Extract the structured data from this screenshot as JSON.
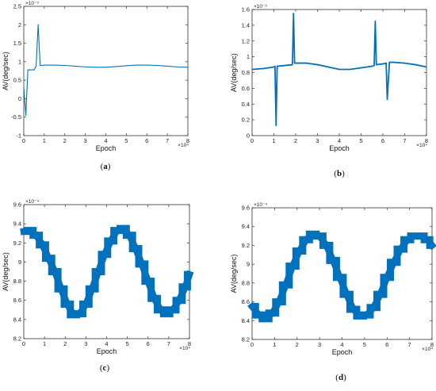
{
  "chart_data": [
    {
      "type": "line",
      "panel": "(a)",
      "caption_letter": "a",
      "xlabel": "Epoch",
      "ylabel": "AV(deg/sec)",
      "x_multiplier_label": "×10⁴",
      "y_multiplier_label": "×10⁻³",
      "xlim": [
        0,
        8
      ],
      "ylim": [
        -1,
        2.5
      ],
      "xticks": [
        "0",
        "1",
        "2",
        "3",
        "4",
        "5",
        "6",
        "7",
        "8"
      ],
      "yticks": [
        "-1",
        "-0.5",
        "0",
        "0.5",
        "1",
        "1.5",
        "2",
        "2.5"
      ],
      "series_color": "#0072BD",
      "series": [
        {
          "x": [
            0.0,
            0.1,
            0.2,
            0.3,
            0.5,
            0.6,
            0.7,
            0.8,
            0.9,
            1.0,
            1.5,
            2.0,
            2.5,
            3.0,
            3.5,
            4.0,
            4.5,
            5.0,
            5.5,
            6.0,
            6.5,
            7.0,
            7.5,
            8.0
          ],
          "y": [
            0.3,
            -0.45,
            0.78,
            0.78,
            0.78,
            0.88,
            2.0,
            0.9,
            0.9,
            0.91,
            0.91,
            0.9,
            0.88,
            0.86,
            0.85,
            0.85,
            0.87,
            0.89,
            0.91,
            0.91,
            0.9,
            0.88,
            0.86,
            0.85
          ]
        }
      ]
    },
    {
      "type": "line",
      "panel": "(b)",
      "caption_letter": "b",
      "xlabel": "Epoch",
      "ylabel": "AV(deg/sec)",
      "x_multiplier_label": "×10⁴",
      "y_multiplier_label": "×10⁻³",
      "xlim": [
        0,
        8
      ],
      "ylim": [
        0,
        1.6
      ],
      "xticks": [
        "0",
        "1",
        "2",
        "3",
        "4",
        "5",
        "6",
        "7",
        "8"
      ],
      "yticks": [
        "0",
        "0.2",
        "0.4",
        "0.6",
        "0.8",
        "1",
        "1.2",
        "1.4",
        "1.6"
      ],
      "series_color": "#0072BD",
      "series": [
        {
          "x": [
            0.0,
            0.5,
            1.0,
            1.05,
            1.1,
            1.15,
            1.5,
            1.85,
            1.9,
            1.95,
            2.5,
            3.0,
            3.5,
            4.0,
            4.5,
            5.0,
            5.5,
            5.6,
            5.65,
            5.7,
            6.0,
            6.15,
            6.2,
            6.3,
            6.5,
            7.0,
            7.5,
            8.0
          ],
          "y": [
            0.84,
            0.85,
            0.87,
            0.88,
            0.13,
            0.88,
            0.89,
            0.9,
            1.55,
            0.92,
            0.92,
            0.9,
            0.87,
            0.84,
            0.84,
            0.86,
            0.88,
            0.89,
            1.45,
            0.9,
            0.91,
            0.92,
            0.46,
            0.93,
            0.93,
            0.92,
            0.9,
            0.87
          ]
        }
      ]
    },
    {
      "type": "line",
      "panel": "(c)",
      "caption_letter": "c",
      "xlabel": "Epoch",
      "ylabel": "AV(deg/sec)",
      "x_multiplier_label": "×10⁴",
      "y_multiplier_label": "×10⁻⁴",
      "xlim": [
        0,
        8
      ],
      "ylim": [
        8.2,
        9.6
      ],
      "xticks": [
        "0",
        "1",
        "2",
        "3",
        "4",
        "5",
        "6",
        "7",
        "8"
      ],
      "yticks": [
        "8.2",
        "8.4",
        "8.6",
        "8.8",
        "9",
        "9.2",
        "9.4",
        "9.6"
      ],
      "series_color": "#0072BD",
      "band_half_width": 0.035,
      "series": [
        {
          "x": [
            0.0,
            0.3,
            0.6,
            0.9,
            1.2,
            1.5,
            1.8,
            2.1,
            2.4,
            2.7,
            3.0,
            3.3,
            3.6,
            3.9,
            4.2,
            4.5,
            4.8,
            5.1,
            5.4,
            5.7,
            6.0,
            6.3,
            6.6,
            6.9,
            7.2,
            7.5,
            7.8,
            8.0
          ],
          "y": [
            9.32,
            9.33,
            9.28,
            9.18,
            9.04,
            8.9,
            8.72,
            8.56,
            8.45,
            8.46,
            8.56,
            8.72,
            8.9,
            9.08,
            9.22,
            9.33,
            9.35,
            9.28,
            9.14,
            8.98,
            8.8,
            8.62,
            8.5,
            8.46,
            8.5,
            8.6,
            8.74,
            8.87
          ]
        }
      ]
    },
    {
      "type": "line",
      "panel": "(d)",
      "caption_letter": "d",
      "xlabel": "Epoch",
      "ylabel": "AV(deg/sec)",
      "x_multiplier_label": "×10⁴",
      "y_multiplier_label": "×10⁻⁴",
      "xlim": [
        0,
        8
      ],
      "ylim": [
        8.2,
        9.6
      ],
      "xticks": [
        "0",
        "1",
        "2",
        "3",
        "4",
        "5",
        "6",
        "7",
        "8"
      ],
      "yticks": [
        "8.2",
        "8.4",
        "8.6",
        "8.8",
        "9",
        "9.2",
        "9.4",
        "9.6"
      ],
      "series_color": "#0072BD",
      "band_half_width": 0.035,
      "series": [
        {
          "x": [
            0.0,
            0.3,
            0.6,
            0.9,
            1.2,
            1.5,
            1.8,
            2.1,
            2.4,
            2.7,
            3.0,
            3.3,
            3.6,
            3.9,
            4.2,
            4.5,
            4.8,
            5.1,
            5.4,
            5.7,
            6.0,
            6.3,
            6.6,
            6.9,
            7.2,
            7.5,
            7.8,
            8.0
          ],
          "y": [
            8.55,
            8.46,
            8.42,
            8.48,
            8.6,
            8.78,
            8.98,
            9.14,
            9.26,
            9.32,
            9.3,
            9.2,
            9.04,
            8.86,
            8.68,
            8.52,
            8.45,
            8.46,
            8.54,
            8.68,
            8.86,
            9.02,
            9.16,
            9.26,
            9.3,
            9.3,
            9.26,
            9.2
          ]
        }
      ]
    }
  ]
}
